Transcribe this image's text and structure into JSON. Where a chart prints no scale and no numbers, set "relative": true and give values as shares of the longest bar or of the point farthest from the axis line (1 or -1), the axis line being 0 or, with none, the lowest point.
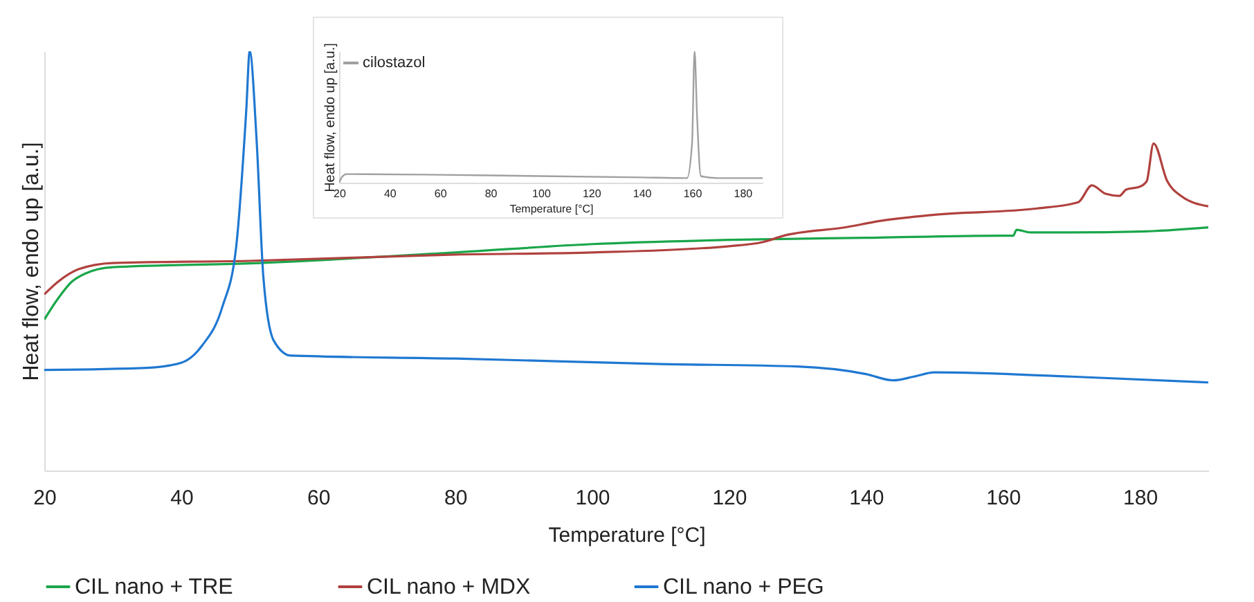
{
  "chart_data": [
    {
      "type": "line",
      "xlabel": "Temperature [°C]",
      "ylabel": "Heat flow, endo up [a.u.]",
      "relative": true,
      "xlim": [
        20,
        190
      ],
      "xticks": [
        20,
        40,
        60,
        80,
        100,
        120,
        140,
        160,
        180
      ],
      "grid": false,
      "legend": "bottom",
      "series": [
        {
          "name": "CIL nano + TRE",
          "color": "#1aa64a",
          "x": [
            20,
            22,
            24,
            26,
            30,
            50,
            80,
            100,
            120,
            140,
            160,
            161.5,
            162,
            164,
            170,
            180,
            190
          ],
          "values": [
            0.36,
            0.41,
            0.45,
            0.47,
            0.485,
            0.494,
            0.52,
            0.54,
            0.55,
            0.555,
            0.56,
            0.56,
            0.574,
            0.568,
            0.568,
            0.57,
            0.58
          ]
        },
        {
          "name": "CIL nano + MDX",
          "color": "#b0413e",
          "x": [
            20,
            22,
            25,
            30,
            50,
            80,
            100,
            120,
            125,
            128,
            137,
            142,
            150,
            165,
            171,
            173,
            175,
            177,
            178,
            180,
            181,
            182,
            184,
            186,
            190
          ],
          "values": [
            0.42,
            0.45,
            0.48,
            0.495,
            0.5,
            0.515,
            0.52,
            0.535,
            0.545,
            0.56,
            0.58,
            0.595,
            0.61,
            0.625,
            0.64,
            0.68,
            0.66,
            0.655,
            0.67,
            0.677,
            0.69,
            0.78,
            0.69,
            0.655,
            0.63
          ]
        },
        {
          "name": "CIL nano + PEG",
          "color": "#1f78d1",
          "x": [
            20,
            35,
            40,
            43,
            46,
            48,
            49.5,
            50,
            51,
            52,
            53.5,
            56,
            80,
            110,
            130,
            140,
            144,
            147,
            150,
            170,
            190
          ],
          "values": [
            0.24,
            0.245,
            0.257,
            0.297,
            0.39,
            0.53,
            0.86,
            1,
            0.79,
            0.46,
            0.31,
            0.274,
            0.267,
            0.254,
            0.248,
            0.23,
            0.215,
            0.224,
            0.234,
            0.224,
            0.21
          ]
        }
      ]
    },
    {
      "type": "line",
      "xlabel": "Temperature [°C]",
      "ylabel": "Heat flow, endo up [a.u.]",
      "relative": true,
      "xlim": [
        20,
        188
      ],
      "xticks": [
        20,
        40,
        60,
        80,
        100,
        120,
        140,
        160,
        180
      ],
      "grid": false,
      "legend": "top left",
      "series": [
        {
          "name": "cilostazol",
          "color": "#a0a0a0",
          "x": [
            20,
            21,
            23,
            60,
            100,
            140,
            158,
            160,
            161,
            162,
            163.5,
            170,
            188
          ],
          "values": [
            0,
            0.04,
            0.065,
            0.06,
            0.05,
            0.04,
            0.035,
            0.3,
            1,
            0.5,
            0.05,
            0.035,
            0.035
          ]
        }
      ]
    }
  ]
}
